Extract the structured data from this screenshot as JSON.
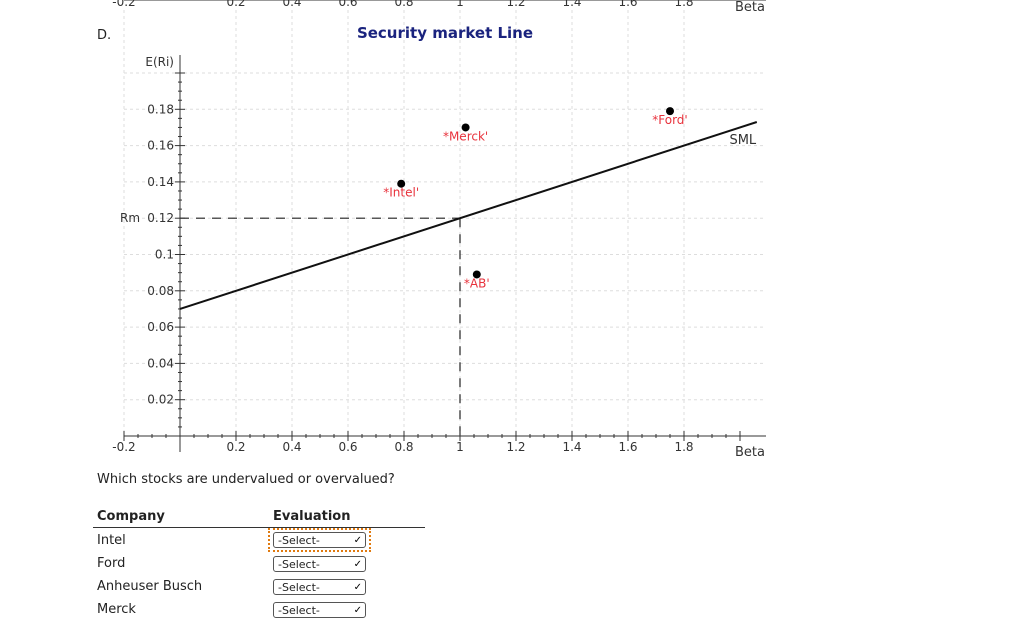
{
  "part_label": "D.",
  "chart_data": {
    "type": "line",
    "title": "Security market Line",
    "xlabel": "Beta",
    "ylabel": "E(Ri)",
    "xlim": [
      -0.3,
      2.1
    ],
    "ylim": [
      0,
      0.21
    ],
    "x_ticks": [
      -0.2,
      0.2,
      0.4,
      0.6,
      0.8,
      1,
      1.2,
      1.4,
      1.6,
      1.8
    ],
    "x_tick_labels": [
      "-0.2",
      "0.2",
      "0.4",
      "0.6",
      "0.8",
      "1",
      "1.2",
      "1.4",
      "1.6",
      "1.8"
    ],
    "y_ticks": [
      0.02,
      0.04,
      0.06,
      0.08,
      0.1,
      0.12,
      0.14,
      0.16,
      0.18
    ],
    "y_tick_labels": [
      "0.02",
      "0.04",
      "0.06",
      "0.08",
      "0.1",
      "0.12",
      "0.14",
      "0.16",
      "0.18"
    ],
    "rm_label": "Rm",
    "rm_value": 0.12,
    "market_beta": 1,
    "grid": true,
    "line": {
      "name": "SML",
      "x": [
        0,
        2.06
      ],
      "y": [
        0.07,
        0.173
      ]
    },
    "points": [
      {
        "label": "Intel",
        "x": 0.79,
        "y": 0.139
      },
      {
        "label": "Merck",
        "x": 1.02,
        "y": 0.17
      },
      {
        "label": "AB",
        "x": 1.06,
        "y": 0.089
      },
      {
        "label": "Ford",
        "x": 1.75,
        "y": 0.179
      }
    ]
  },
  "question": "Which stocks are undervalued or overvalued?",
  "table": {
    "headers": [
      "Company",
      "Evaluation"
    ],
    "rows": [
      {
        "company": "Intel",
        "select": "-Select-"
      },
      {
        "company": "Ford",
        "select": "-Select-"
      },
      {
        "company": "Anheuser Busch",
        "select": "-Select-"
      },
      {
        "company": "Merck",
        "select": "-Select-"
      }
    ]
  }
}
